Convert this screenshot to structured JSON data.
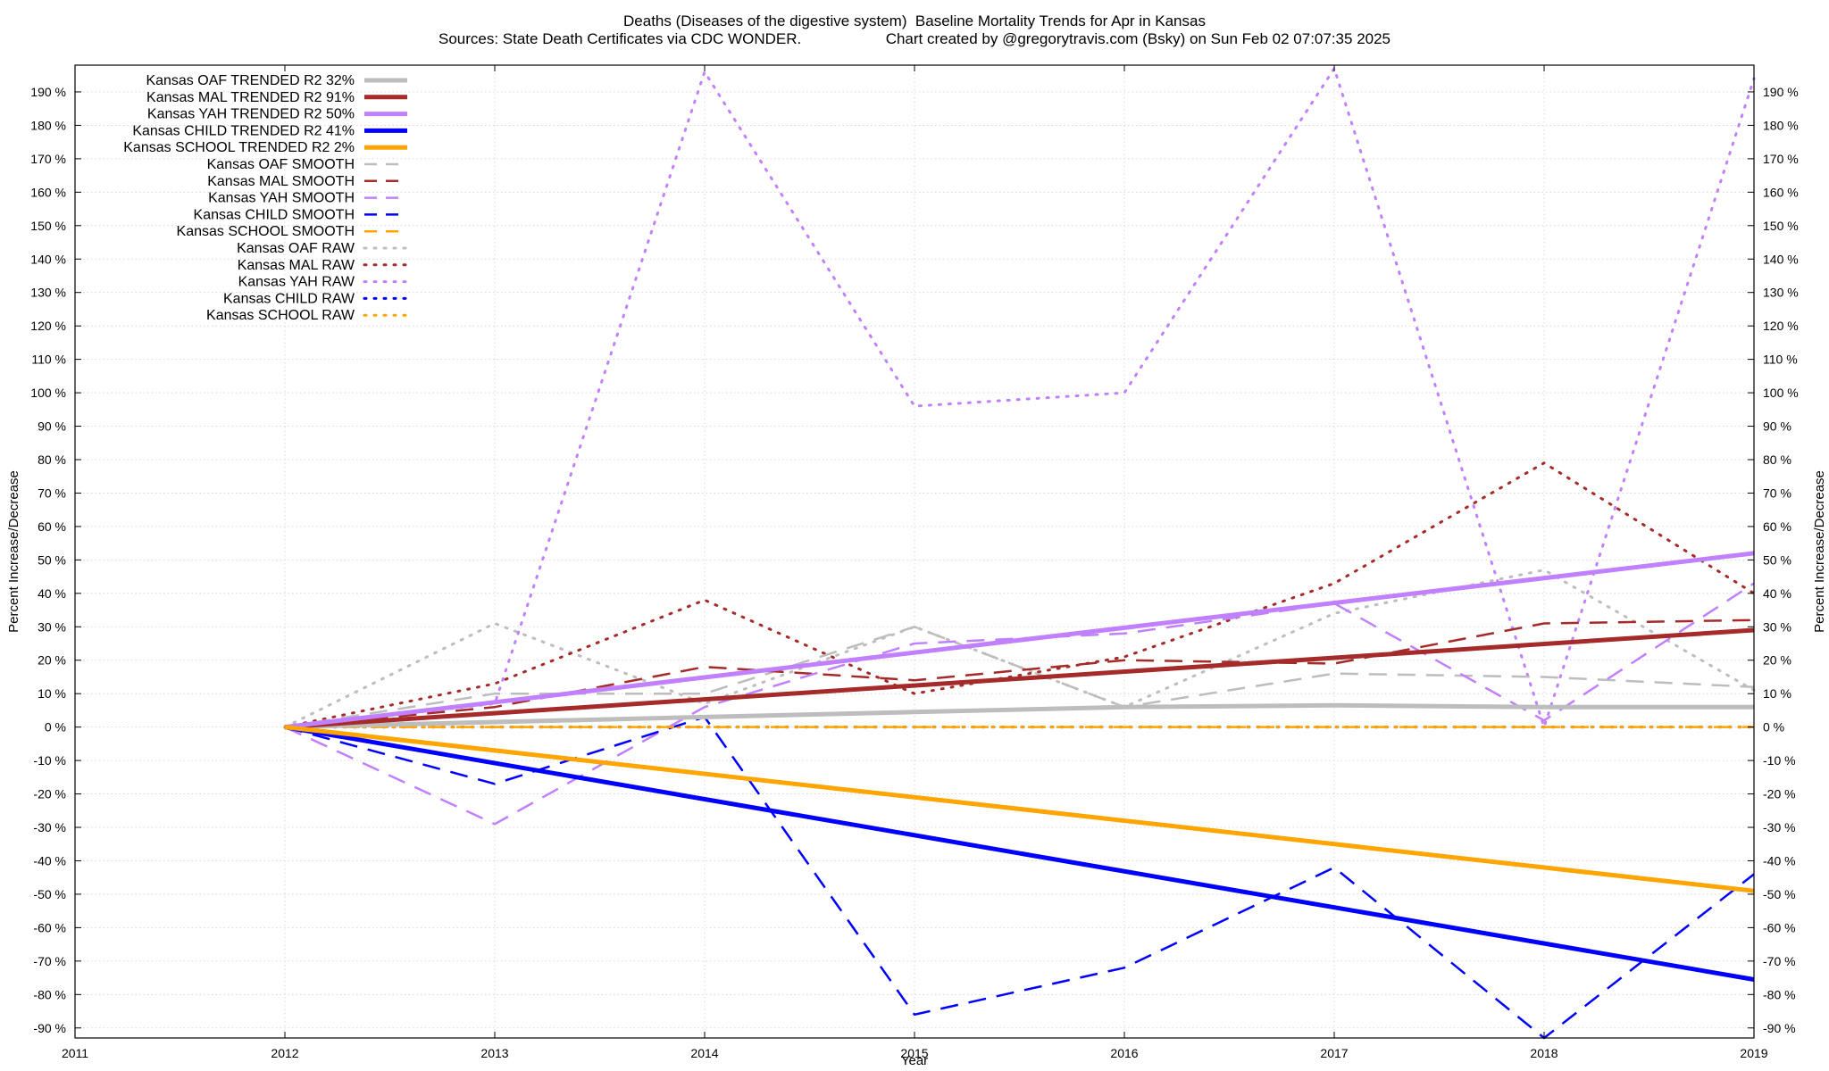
{
  "title_line1": "Deaths (Diseases of the digestive system)  Baseline Mortality Trends for Apr in Kansas",
  "title_line2_left": "Sources: State Death Certificates via CDC WONDER.",
  "title_line2_right": "Chart created by @gregorytravis.com (Bsky) on Sun Feb 02 07:07:35 2025",
  "chart_data": {
    "type": "line",
    "title": "Deaths (Diseases of the digestive system)  Baseline Mortality Trends for Apr in Kansas",
    "xlabel": "Year",
    "ylabel": "Percent Increase/Decrease",
    "y2label": "Percent Increase/Decrease",
    "xlim": [
      2011,
      2019
    ],
    "ylim": [
      -93,
      198
    ],
    "x_ticks": [
      2011,
      2012,
      2013,
      2014,
      2015,
      2016,
      2017,
      2018,
      2019
    ],
    "y_ticks": [
      -90,
      -80,
      -70,
      -60,
      -50,
      -40,
      -30,
      -20,
      -10,
      0,
      10,
      20,
      30,
      40,
      50,
      60,
      70,
      80,
      90,
      100,
      110,
      120,
      130,
      140,
      150,
      160,
      170,
      180,
      190
    ],
    "y_tick_suffix": " %",
    "grid": true,
    "legend_position": "top-left",
    "series": [
      {
        "name": "Kansas OAF TRENDED R2  32%",
        "style": "solid",
        "color": "#bdbdbd",
        "x": [
          2012,
          2013,
          2014,
          2015,
          2016,
          2017,
          2018,
          2019
        ],
        "y": [
          0,
          1.5,
          3,
          4.5,
          6,
          6.5,
          6,
          6
        ]
      },
      {
        "name": "Kansas MAL TRENDED R2  91%",
        "style": "solid",
        "color": "#a52a2a",
        "x": [
          2012,
          2019
        ],
        "y": [
          0,
          29
        ]
      },
      {
        "name": "Kansas YAH TRENDED R2  50%",
        "style": "solid",
        "color": "#c080ff",
        "x": [
          2012,
          2019
        ],
        "y": [
          0,
          52
        ]
      },
      {
        "name": "Kansas CHILD TRENDED R2  41%",
        "style": "solid",
        "color": "#0000ff",
        "x": [
          2012,
          2019
        ],
        "y": [
          0,
          -75.5
        ]
      },
      {
        "name": "Kansas SCHOOL TRENDED R2   2%",
        "style": "solid",
        "color": "#ffa500",
        "x": [
          2012,
          2019
        ],
        "y": [
          0,
          -49
        ]
      },
      {
        "name": "Kansas OAF SMOOTH",
        "style": "dashed",
        "color": "#bdbdbd",
        "x": [
          2012,
          2013,
          2014,
          2015,
          2016,
          2017,
          2018,
          2019
        ],
        "y": [
          0,
          10,
          10,
          30,
          6,
          16,
          15,
          12
        ]
      },
      {
        "name": "Kansas MAL SMOOTH",
        "style": "dashed",
        "color": "#a52a2a",
        "x": [
          2012,
          2013,
          2014,
          2015,
          2016,
          2017,
          2018,
          2019
        ],
        "y": [
          0,
          6,
          18,
          14,
          20,
          19,
          31,
          32
        ]
      },
      {
        "name": "Kansas YAH SMOOTH",
        "style": "dashed",
        "color": "#c080ff",
        "x": [
          2012,
          2013,
          2014,
          2015,
          2016,
          2017,
          2018,
          2019
        ],
        "y": [
          0,
          -29,
          6,
          25,
          28,
          37,
          2,
          43
        ]
      },
      {
        "name": "Kansas CHILD SMOOTH",
        "style": "dashed",
        "color": "#0000ff",
        "x": [
          2012,
          2013,
          2014,
          2015,
          2016,
          2017,
          2018,
          2019
        ],
        "y": [
          0,
          -17,
          3,
          -86,
          -72,
          -42,
          -93,
          -44
        ]
      },
      {
        "name": "Kansas SCHOOL SMOOTH",
        "style": "dashed",
        "color": "#ffa500",
        "x": [
          2012,
          2019
        ],
        "y": [
          0,
          0
        ]
      },
      {
        "name": "Kansas OAF RAW",
        "style": "dotted",
        "color": "#bdbdbd",
        "x": [
          2012,
          2013,
          2014,
          2015,
          2016,
          2017,
          2018,
          2019
        ],
        "y": [
          0,
          31,
          7,
          30,
          6,
          34,
          47,
          11
        ]
      },
      {
        "name": "Kansas MAL RAW",
        "style": "dotted",
        "color": "#a52a2a",
        "x": [
          2012,
          2013,
          2014,
          2015,
          2016,
          2017,
          2018,
          2019
        ],
        "y": [
          0,
          13,
          38,
          10,
          21,
          43,
          79,
          40
        ]
      },
      {
        "name": "Kansas YAH RAW",
        "style": "dotted",
        "color": "#c080ff",
        "x": [
          2012,
          2013,
          2014,
          2015,
          2016,
          2017,
          2018,
          2019
        ],
        "y": [
          0,
          7,
          196,
          96,
          100,
          197,
          0,
          194
        ]
      },
      {
        "name": "Kansas CHILD RAW",
        "style": "dotted",
        "color": "#0000ff",
        "x": [
          2012,
          2019
        ],
        "y": [
          0,
          0
        ]
      },
      {
        "name": "Kansas SCHOOL RAW",
        "style": "dotted",
        "color": "#ffa500",
        "x": [
          2012,
          2019
        ],
        "y": [
          0,
          0
        ]
      }
    ]
  }
}
